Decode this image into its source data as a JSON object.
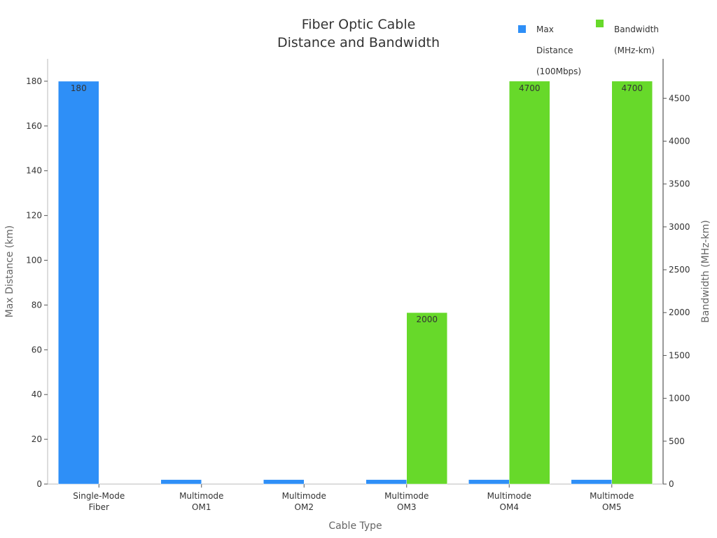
{
  "chart_data": {
    "type": "bar",
    "title_lines": [
      "Fiber Optic Cable",
      "Distance and Bandwidth"
    ],
    "xlabel": "Cable Type",
    "ylabel_left": "Max Distance (km)",
    "ylabel_right": "Bandwidth (MHz-km)",
    "categories": [
      [
        "Single-Mode",
        "Fiber"
      ],
      [
        "Multimode",
        "OM1"
      ],
      [
        "Multimode",
        "OM2"
      ],
      [
        "Multimode",
        "OM3"
      ],
      [
        "Multimode",
        "OM4"
      ],
      [
        "Multimode",
        "OM5"
      ]
    ],
    "left_axis": {
      "min": 0,
      "max": 190,
      "ticks": [
        0,
        20,
        40,
        60,
        80,
        100,
        120,
        140,
        160,
        180
      ]
    },
    "right_axis": {
      "min": 0,
      "max": 4960,
      "ticks": [
        0,
        500,
        1000,
        1500,
        2000,
        2500,
        3000,
        3500,
        4000,
        4500
      ]
    },
    "series": [
      {
        "name": "Max Distance (100Mbps)",
        "legend_lines": [
          "Max",
          "Distance",
          "(100Mbps)"
        ],
        "axis": "left",
        "color": "#2E8FF7",
        "values": [
          180,
          2,
          2,
          2,
          2,
          2
        ],
        "data_labels": [
          "180",
          null,
          null,
          null,
          null,
          null
        ]
      },
      {
        "name": "Bandwidth (MHz-km)",
        "legend_lines": [
          "Bandwidth",
          "(MHz-km)"
        ],
        "axis": "right",
        "color": "#67D92A",
        "values": [
          0,
          0,
          0,
          2000,
          4700,
          4700
        ],
        "data_labels": [
          null,
          null,
          null,
          "2000",
          "4700",
          "4700"
        ]
      }
    ],
    "grid": false,
    "legend_position": "top-right"
  }
}
